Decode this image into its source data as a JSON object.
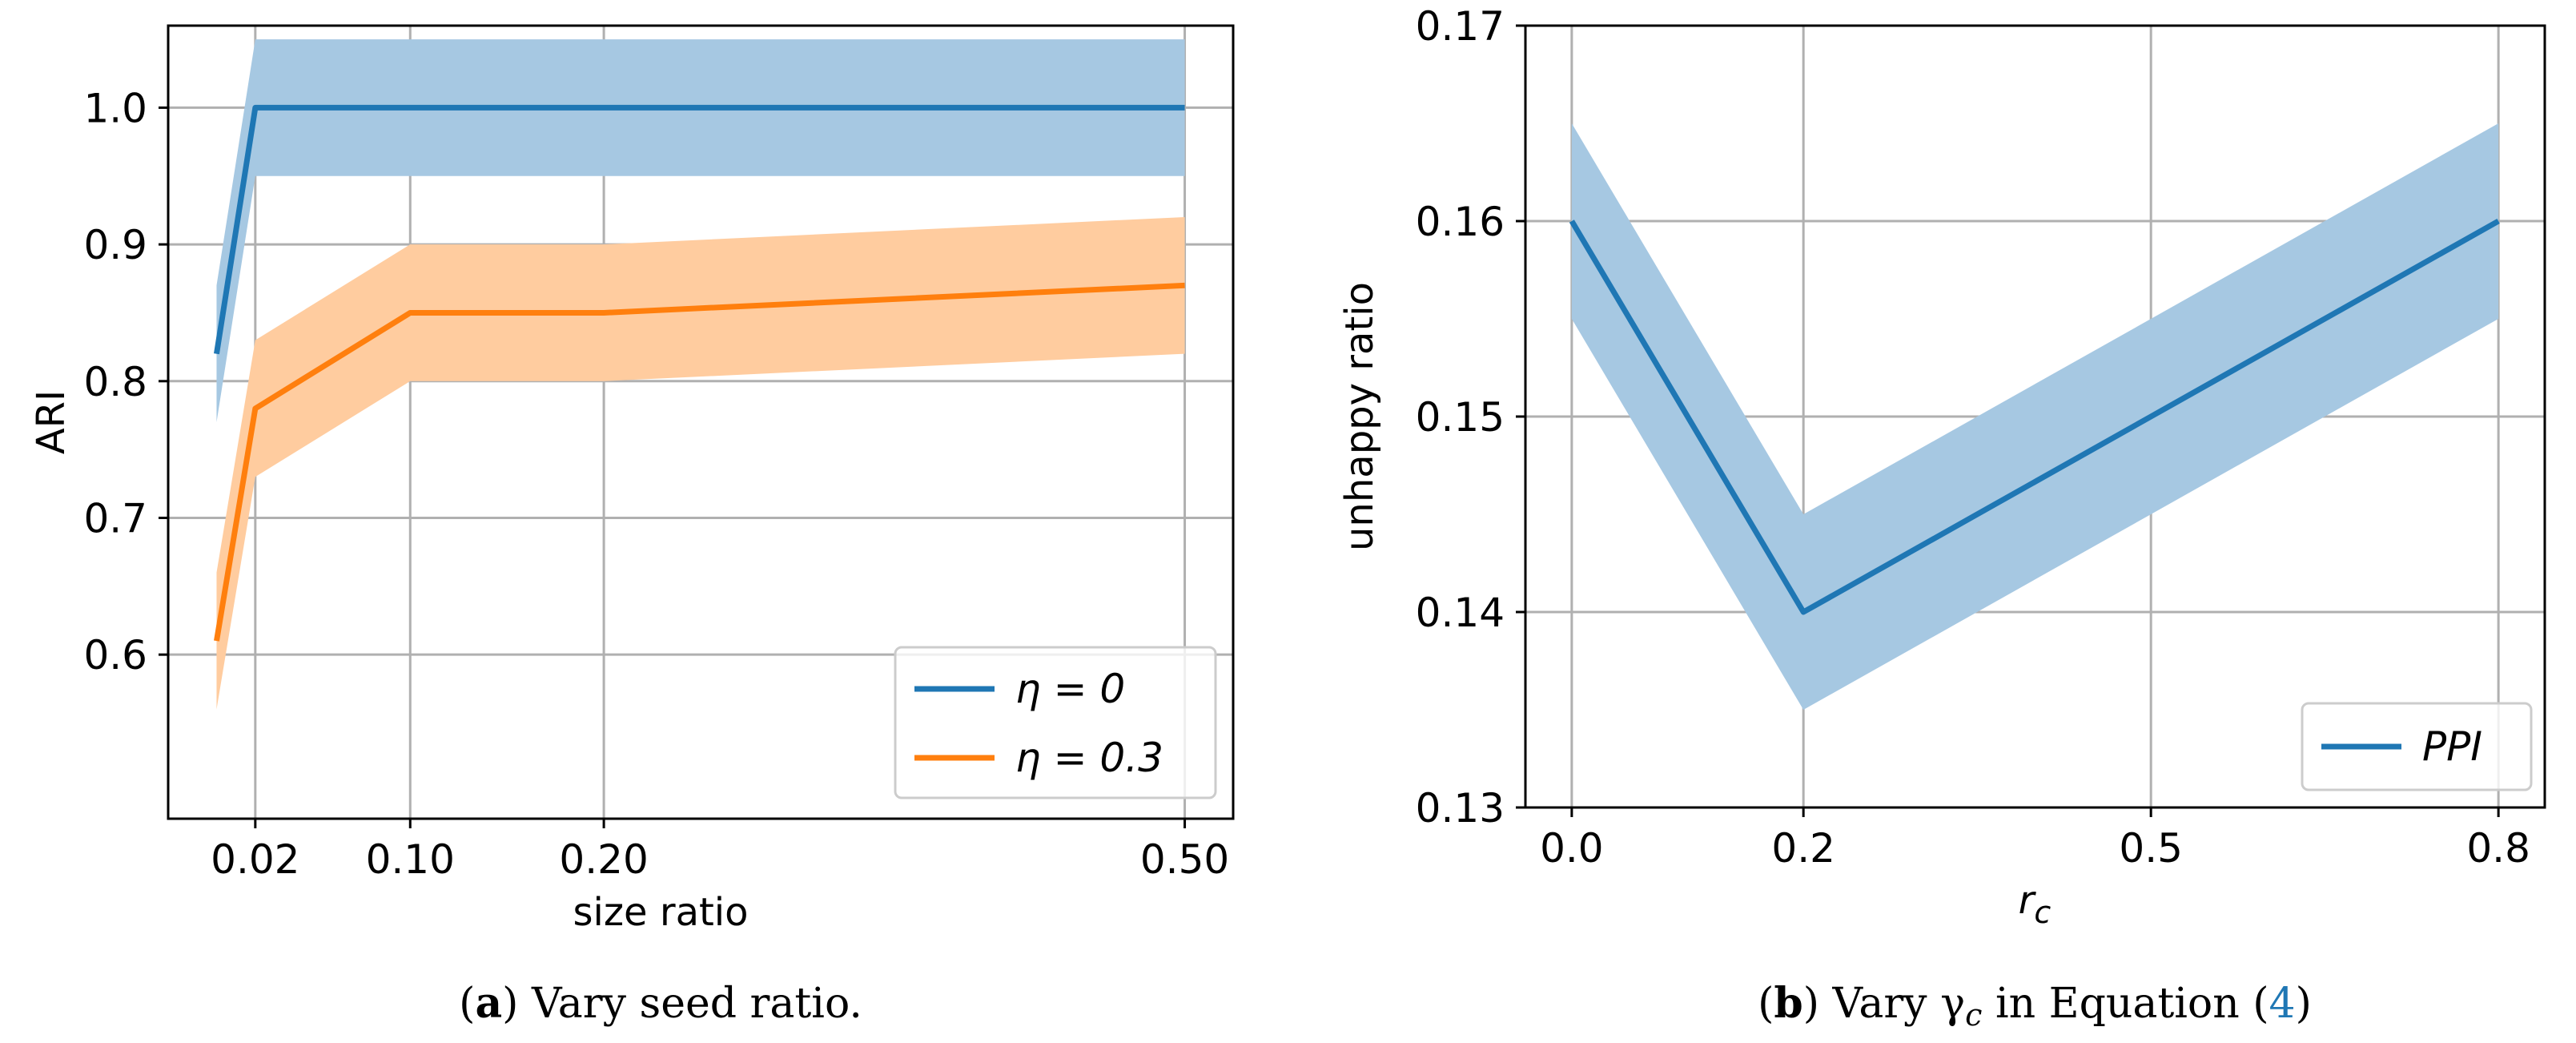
{
  "chart_data": [
    {
      "type": "line",
      "xlabel": "size  ratio",
      "ylabel": "ARI",
      "xlim": [
        -0.025,
        0.525
      ],
      "ylim": [
        0.48,
        1.06
      ],
      "xticks": [
        0.02,
        0.1,
        0.2,
        0.5
      ],
      "xtick_labels": [
        "0.02",
        "0.10",
        "0.20",
        "0.50"
      ],
      "yticks": [
        0.6,
        0.7,
        0.8,
        0.9,
        1.0
      ],
      "ytick_labels": [
        "0.6",
        "0.7",
        "0.8",
        "0.9",
        "1.0"
      ],
      "grid": true,
      "legend": "lower-right",
      "caption_prefix": "(",
      "caption_bold": "a",
      "caption_rest": ") Vary seed ratio.",
      "series": [
        {
          "name": "η = 0",
          "color": "#1f77b4",
          "band_color": "#a6c8e2",
          "x": [
            0.0,
            0.02,
            0.1,
            0.2,
            0.5
          ],
          "y": [
            0.82,
            1.0,
            1.0,
            1.0,
            1.0
          ],
          "lower": [
            0.77,
            0.95,
            0.95,
            0.95,
            0.95
          ],
          "upper": [
            0.87,
            1.05,
            1.05,
            1.05,
            1.05
          ]
        },
        {
          "name": "η = 0.3",
          "color": "#ff7f0e",
          "band_color": "#ffcc9f",
          "x": [
            0.0,
            0.02,
            0.1,
            0.2,
            0.5
          ],
          "y": [
            0.61,
            0.78,
            0.85,
            0.85,
            0.87
          ],
          "lower": [
            0.56,
            0.73,
            0.8,
            0.8,
            0.82
          ],
          "upper": [
            0.66,
            0.83,
            0.9,
            0.9,
            0.92
          ]
        }
      ]
    },
    {
      "type": "line",
      "xlabel": "r_c",
      "ylabel": "unhappy ratio",
      "xlim": [
        -0.04,
        0.84
      ],
      "ylim": [
        0.13,
        0.17
      ],
      "xticks": [
        0.0,
        0.2,
        0.5,
        0.8
      ],
      "xtick_labels": [
        "0.0",
        "0.2",
        "0.5",
        "0.8"
      ],
      "yticks": [
        0.13,
        0.14,
        0.15,
        0.16,
        0.17
      ],
      "ytick_labels": [
        "0.13",
        "0.14",
        "0.15",
        "0.16",
        "0.17"
      ],
      "grid": true,
      "legend": "lower-right",
      "caption_prefix": "(",
      "caption_bold": "b",
      "caption_rest": ") Vary γ",
      "caption_sub": "c",
      "caption_mid": " in Equation (",
      "caption_ref": "4",
      "caption_end": ")",
      "series": [
        {
          "name": "PPI",
          "color": "#1f77b4",
          "band_color": "#a6c8e2",
          "x": [
            0.0,
            0.2,
            0.5,
            0.8
          ],
          "y": [
            0.16,
            0.14,
            0.15,
            0.16
          ],
          "lower": [
            0.155,
            0.135,
            0.145,
            0.155
          ],
          "upper": [
            0.165,
            0.145,
            0.155,
            0.165
          ]
        }
      ]
    }
  ]
}
